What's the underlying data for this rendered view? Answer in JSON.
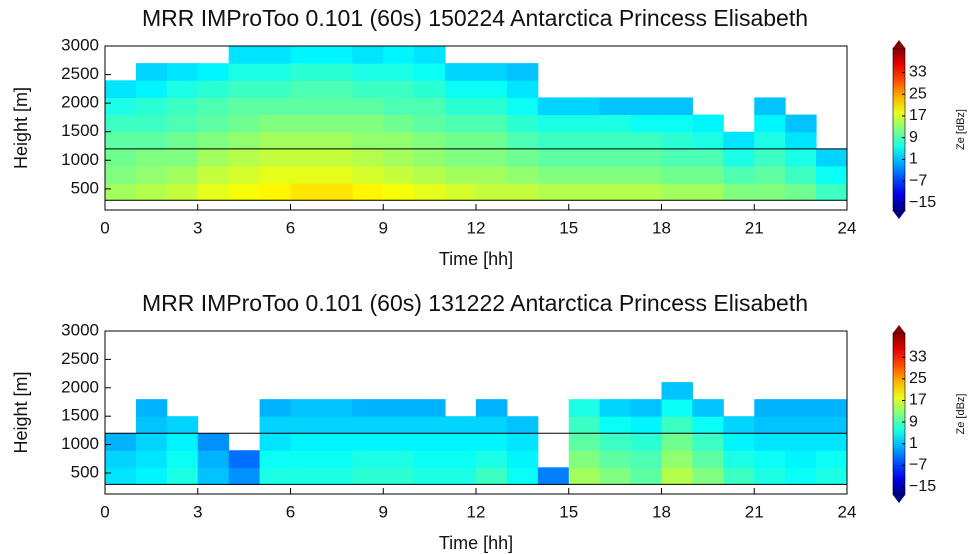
{
  "chart_data": [
    {
      "type": "heatmap",
      "title": "MRR IMProToo 0.101 (60s) 150224 Antarctica Princess Elisabeth",
      "xlabel": "Time [hh]",
      "ylabel": "Height [m]",
      "colorbar_label": "Ze [dBz]",
      "colormap": "jet",
      "xlim": [
        0,
        24
      ],
      "xticks": [
        0,
        3,
        6,
        9,
        12,
        15,
        18,
        21,
        24
      ],
      "ylim": [
        130,
        3000
      ],
      "yticks": [
        500,
        1000,
        1500,
        2000,
        2500,
        3000
      ],
      "clim": [
        -18,
        42
      ],
      "cticks": [
        33,
        25,
        17,
        9,
        1,
        {
          "value": -7,
          "label": "−7"
        },
        {
          "value": -15,
          "label": "−15"
        }
      ],
      "hlines": [
        1200,
        300
      ],
      "xbins": [
        0,
        1,
        2,
        3,
        4,
        5,
        6,
        7,
        8,
        9,
        10,
        11,
        12,
        13,
        14,
        15,
        16,
        17,
        18,
        19,
        20,
        21,
        22,
        23,
        24
      ],
      "ybins": [
        300,
        600,
        900,
        1200,
        1500,
        1800,
        2100,
        2400,
        2700,
        3000
      ],
      "z": [
        [
          14,
          15,
          16,
          18,
          19,
          20,
          21,
          21,
          20,
          19,
          18,
          17,
          16,
          16,
          15,
          15,
          15,
          15,
          14,
          14,
          12,
          12,
          11,
          8
        ],
        [
          12,
          13,
          14,
          16,
          17,
          18,
          18,
          18,
          17,
          16,
          15,
          14,
          14,
          13,
          12,
          12,
          12,
          12,
          11,
          11,
          9,
          10,
          8,
          5
        ],
        [
          11,
          12,
          12,
          14,
          15,
          16,
          16,
          16,
          15,
          14,
          13,
          12,
          12,
          11,
          10,
          10,
          10,
          10,
          9,
          9,
          6,
          8,
          6,
          2
        ],
        [
          10,
          10,
          11,
          12,
          13,
          14,
          14,
          14,
          13,
          13,
          12,
          11,
          11,
          9,
          8,
          8,
          8,
          8,
          7,
          6,
          3,
          6,
          3,
          null
        ],
        [
          8,
          8,
          9,
          10,
          11,
          12,
          12,
          12,
          12,
          11,
          10,
          9,
          9,
          7,
          6,
          6,
          6,
          5,
          5,
          4,
          null,
          4,
          1,
          null
        ],
        [
          6,
          7,
          8,
          9,
          10,
          10,
          10,
          10,
          10,
          9,
          9,
          7,
          7,
          5,
          2,
          2,
          1,
          1,
          1,
          null,
          null,
          1,
          null,
          null
        ],
        [
          3,
          4,
          6,
          7,
          8,
          8,
          9,
          9,
          8,
          8,
          7,
          5,
          5,
          3,
          null,
          null,
          null,
          null,
          null,
          null,
          null,
          null,
          null,
          null
        ],
        [
          null,
          2,
          3,
          4,
          6,
          6,
          7,
          7,
          6,
          6,
          5,
          2,
          2,
          1,
          null,
          null,
          null,
          null,
          null,
          null,
          null,
          null,
          null,
          null
        ],
        [
          null,
          null,
          null,
          null,
          3,
          3,
          4,
          4,
          3,
          4,
          3,
          null,
          null,
          null,
          null,
          null,
          null,
          null,
          null,
          null,
          null,
          null,
          null,
          null
        ]
      ]
    },
    {
      "type": "heatmap",
      "title": "MRR IMProToo 0.101 (60s) 131222 Antarctica Princess Elisabeth",
      "xlabel": "Time [hh]",
      "ylabel": "Height [m]",
      "colorbar_label": "Ze [dBz]",
      "colormap": "jet",
      "xlim": [
        0,
        24
      ],
      "xticks": [
        0,
        3,
        6,
        9,
        12,
        15,
        18,
        21,
        24
      ],
      "ylim": [
        130,
        3000
      ],
      "yticks": [
        500,
        1000,
        1500,
        2000,
        2500,
        3000
      ],
      "clim": [
        -18,
        42
      ],
      "cticks": [
        33,
        25,
        17,
        9,
        1,
        {
          "value": -7,
          "label": "−7"
        },
        {
          "value": -15,
          "label": "−15"
        }
      ],
      "hlines": [
        1200,
        300
      ],
      "xbins": [
        0,
        1,
        2,
        3,
        4,
        5,
        6,
        7,
        8,
        9,
        10,
        11,
        12,
        13,
        14,
        15,
        16,
        17,
        18,
        19,
        20,
        21,
        22,
        23,
        24
      ],
      "ybins": [
        300,
        600,
        900,
        1200,
        1500,
        1800,
        2100,
        2400,
        2700,
        3000
      ],
      "z": [
        [
          3,
          4,
          6,
          1,
          -2,
          6,
          6,
          6,
          7,
          7,
          6,
          6,
          8,
          5,
          -3,
          14,
          12,
          10,
          15,
          12,
          8,
          6,
          5,
          6
        ],
        [
          2,
          3,
          5,
          0,
          -4,
          5,
          5,
          5,
          6,
          6,
          5,
          5,
          6,
          4,
          null,
          12,
          10,
          9,
          13,
          10,
          6,
          5,
          4,
          5
        ],
        [
          0,
          2,
          4,
          -2,
          null,
          3,
          4,
          4,
          4,
          4,
          4,
          4,
          4,
          3,
          null,
          10,
          8,
          7,
          11,
          8,
          4,
          3,
          3,
          3
        ],
        [
          null,
          1,
          2,
          null,
          null,
          2,
          2,
          2,
          2,
          2,
          2,
          2,
          2,
          1,
          null,
          8,
          5,
          4,
          8,
          5,
          2,
          1,
          1,
          1
        ],
        [
          null,
          0,
          null,
          null,
          null,
          0,
          1,
          1,
          0,
          0,
          0,
          null,
          0,
          null,
          null,
          6,
          2,
          1,
          5,
          1,
          null,
          0,
          0,
          0
        ],
        [
          null,
          null,
          null,
          null,
          null,
          null,
          null,
          null,
          null,
          null,
          null,
          null,
          null,
          null,
          null,
          null,
          null,
          null,
          1,
          null,
          null,
          null,
          null,
          null
        ],
        [
          null,
          null,
          null,
          null,
          null,
          null,
          null,
          null,
          null,
          null,
          null,
          null,
          null,
          null,
          null,
          null,
          null,
          null,
          null,
          null,
          null,
          null,
          null,
          null
        ],
        [
          null,
          null,
          null,
          null,
          null,
          null,
          null,
          null,
          null,
          null,
          null,
          null,
          null,
          null,
          null,
          null,
          null,
          null,
          null,
          null,
          null,
          null,
          null,
          null
        ],
        [
          null,
          null,
          null,
          null,
          null,
          null,
          null,
          null,
          null,
          null,
          null,
          null,
          null,
          null,
          null,
          null,
          null,
          null,
          null,
          null,
          null,
          null,
          null,
          null
        ]
      ]
    }
  ]
}
